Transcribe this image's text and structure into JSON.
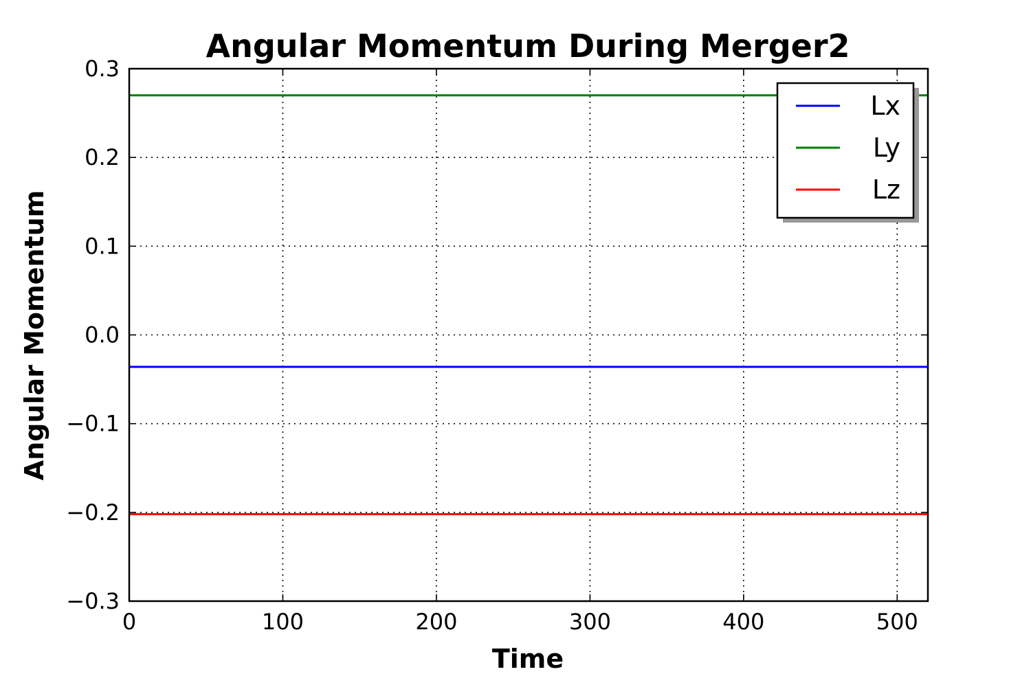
{
  "chart_data": {
    "type": "line",
    "title": "Angular Momentum During Merger2",
    "xlabel": "Time",
    "ylabel": "Angular Momentum",
    "xlim": [
      0,
      520
    ],
    "ylim": [
      -0.3,
      0.3
    ],
    "xticks": [
      0,
      100,
      200,
      300,
      400,
      500
    ],
    "xtick_labels": [
      "0",
      "100",
      "200",
      "300",
      "400",
      "500"
    ],
    "yticks": [
      -0.3,
      -0.2,
      -0.1,
      0.0,
      0.1,
      0.2,
      0.3
    ],
    "ytick_labels": [
      "−0.3",
      "−0.2",
      "−0.1",
      "0.0",
      "0.1",
      "0.2",
      "0.3"
    ],
    "grid": true,
    "legend_position": "top-right",
    "series": [
      {
        "name": "Lx",
        "color": "#0000ff",
        "x": [
          0,
          520
        ],
        "y": [
          -0.036,
          -0.036
        ]
      },
      {
        "name": "Ly",
        "color": "#008000",
        "x": [
          0,
          520
        ],
        "y": [
          0.27,
          0.27
        ]
      },
      {
        "name": "Lz",
        "color": "#ff0000",
        "x": [
          0,
          520
        ],
        "y": [
          -0.202,
          -0.202
        ]
      }
    ]
  }
}
